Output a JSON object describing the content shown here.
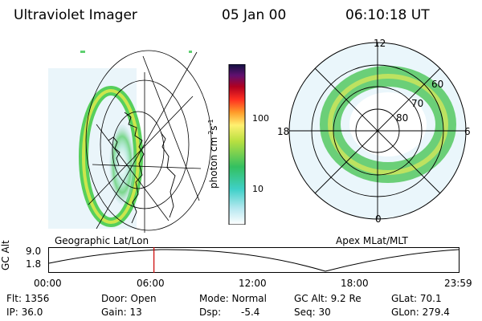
{
  "header": {
    "instrument": "Ultraviolet Imager",
    "date": "05 Jan 00",
    "time": "06:10:18 UT"
  },
  "colorbar": {
    "unit_label": "photon cm",
    "unit_exp1": "-2",
    "unit_s": "s",
    "unit_exp2": "-1",
    "tick_high": "100",
    "tick_low": "10"
  },
  "left_panel": {
    "label": "Geographic Lat/Lon"
  },
  "right_panel": {
    "label": "Apex MLat/MLT",
    "mlt_labels": {
      "top": "12",
      "left": "18",
      "right": "6",
      "bottom": "0"
    },
    "lat_labels": [
      "60",
      "70",
      "80"
    ]
  },
  "altitude_plot": {
    "axis_label": "GC Alt",
    "y_max": "9.0",
    "y_min": "1.8",
    "time_ticks": [
      "00:00",
      "06:00",
      "12:00",
      "18:00",
      "23:59"
    ],
    "marker_fraction": 0.2571
  },
  "info": {
    "flt": "Flt: 1356",
    "ip": "IP: 36.0",
    "door": "Door: Open",
    "gain": "Gain: 13",
    "mode": "Mode: Normal",
    "dsp_label": "Dsp:",
    "dsp_value": "-5.4",
    "gc_alt": "GC Alt: 9.2 Re",
    "seq": "Seq: 30",
    "glat": "GLat:  70.1",
    "glon": "GLon: 279.4"
  },
  "colors": {
    "marker": "#cc0000"
  }
}
